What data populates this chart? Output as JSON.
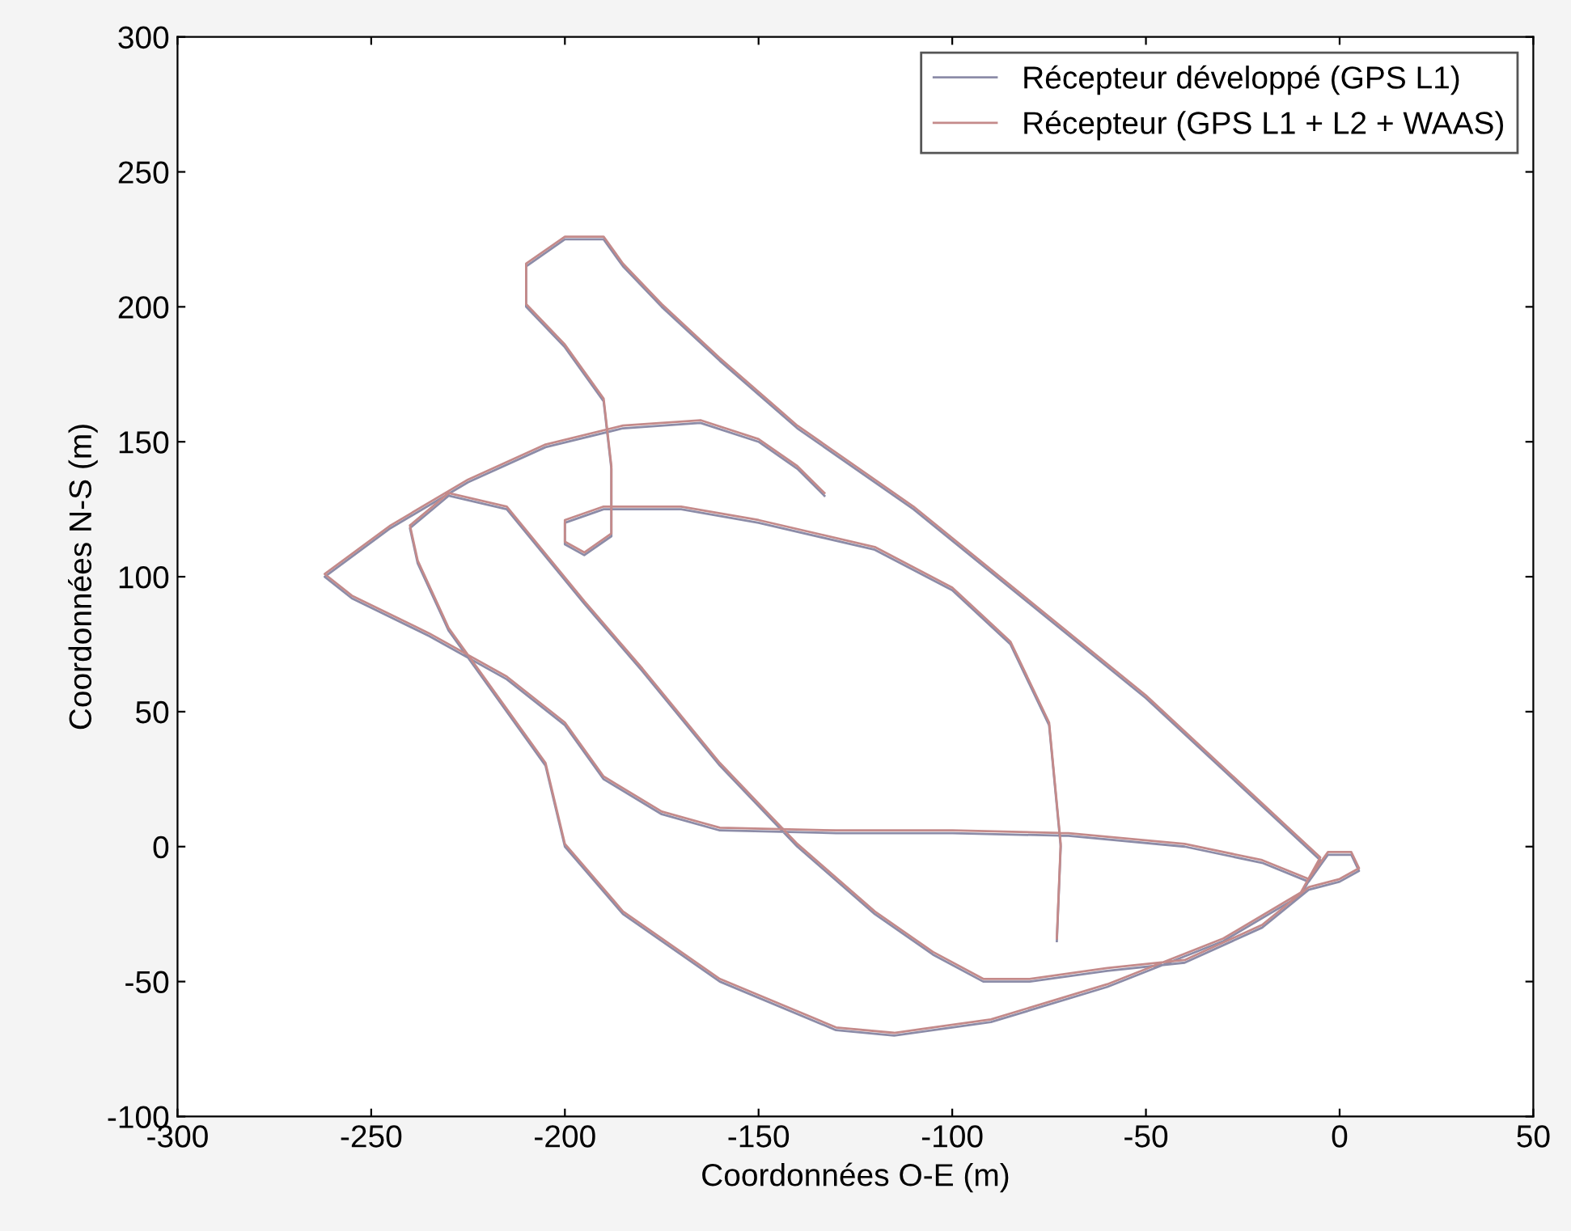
{
  "chart_data": {
    "type": "line",
    "xlabel": "Coordonnées O-E (m)",
    "ylabel": "Coordonnées N-S (m)",
    "xlim": [
      -300,
      50
    ],
    "ylim": [
      -100,
      300
    ],
    "xticks": [
      -300,
      -250,
      -200,
      -150,
      -100,
      -50,
      0,
      50
    ],
    "yticks": [
      -100,
      -50,
      0,
      50,
      100,
      150,
      200,
      250,
      300
    ],
    "grid": false,
    "legend": "top right",
    "marker": "none",
    "line_style": "solid",
    "series": [
      {
        "name": "Récepteur développé (GPS L1)",
        "color": "#8c8ca8",
        "x": [
          -133,
          -140,
          -150,
          -165,
          -185,
          -205,
          -225,
          -245,
          -262,
          -255,
          -235,
          -215,
          -200,
          -190,
          -175,
          -160,
          -130,
          -100,
          -70,
          -40,
          -20,
          -8,
          -3,
          3,
          5,
          0,
          -8,
          -20,
          -40,
          -60,
          -80,
          -92,
          -105,
          -120,
          -140,
          -160,
          -180,
          -195,
          -215,
          -230,
          -240,
          -238,
          -230,
          -215,
          -205,
          -200,
          -185,
          -160,
          -130,
          -115,
          -90,
          -60,
          -30,
          -10,
          -5,
          -20,
          -50,
          -80,
          -110,
          -140,
          -160,
          -175,
          -185,
          -190,
          -200,
          -210,
          -210,
          -200,
          -190,
          -188,
          -188,
          -195,
          -200,
          -200,
          -190,
          -170,
          -150,
          -120,
          -100,
          -85,
          -75,
          -72,
          -73
        ],
        "values": [
          130,
          140,
          150,
          157,
          155,
          148,
          135,
          118,
          100,
          92,
          78,
          62,
          45,
          25,
          12,
          6,
          5,
          5,
          4,
          0,
          -6,
          -13,
          -3,
          -3,
          -9,
          -13,
          -16,
          -30,
          -43,
          -46,
          -50,
          -50,
          -40,
          -25,
          0,
          30,
          65,
          90,
          125,
          130,
          118,
          105,
          80,
          50,
          30,
          0,
          -25,
          -50,
          -68,
          -70,
          -65,
          -52,
          -35,
          -18,
          -5,
          15,
          55,
          90,
          125,
          155,
          180,
          200,
          215,
          225,
          225,
          215,
          200,
          185,
          165,
          140,
          115,
          108,
          112,
          120,
          125,
          125,
          120,
          110,
          95,
          75,
          45,
          0,
          -35
        ]
      },
      {
        "name": "Récepteur (GPS L1 + L2 + WAAS)",
        "color": "#c48a8a",
        "x": [
          -133,
          -140,
          -150,
          -165,
          -185,
          -205,
          -225,
          -245,
          -262,
          -255,
          -235,
          -215,
          -200,
          -190,
          -175,
          -160,
          -130,
          -100,
          -70,
          -40,
          -20,
          -8,
          -3,
          3,
          5,
          0,
          -8,
          -20,
          -40,
          -60,
          -80,
          -92,
          -105,
          -120,
          -140,
          -160,
          -180,
          -195,
          -215,
          -230,
          -240,
          -238,
          -230,
          -215,
          -205,
          -200,
          -185,
          -160,
          -130,
          -115,
          -90,
          -60,
          -30,
          -10,
          -5,
          -20,
          -50,
          -80,
          -110,
          -140,
          -160,
          -175,
          -185,
          -190,
          -200,
          -210,
          -210,
          -200,
          -190,
          -188,
          -188,
          -195,
          -200,
          -200,
          -190,
          -170,
          -150,
          -120,
          -100,
          -85,
          -75,
          -72,
          -73
        ],
        "values": [
          131,
          141,
          151,
          158,
          156,
          149,
          136,
          119,
          101,
          93,
          79,
          63,
          46,
          26,
          13,
          7,
          6,
          6,
          5,
          1,
          -5,
          -12,
          -2,
          -2,
          -8,
          -12,
          -15,
          -29,
          -42,
          -45,
          -49,
          -49,
          -39,
          -24,
          1,
          31,
          66,
          91,
          126,
          131,
          119,
          106,
          81,
          51,
          31,
          1,
          -24,
          -49,
          -67,
          -69,
          -64,
          -51,
          -34,
          -17,
          -4,
          16,
          56,
          91,
          126,
          156,
          181,
          201,
          216,
          226,
          226,
          216,
          201,
          186,
          166,
          141,
          116,
          109,
          113,
          121,
          126,
          126,
          121,
          111,
          96,
          76,
          46,
          1,
          -34
        ]
      }
    ]
  }
}
